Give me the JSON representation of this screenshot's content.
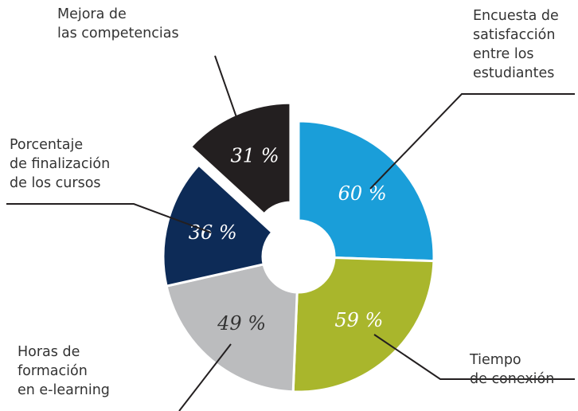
{
  "chart_data": {
    "type": "pie",
    "categories": [
      "Encuesta de\nsatisfacción\nentre los\nestudiantes",
      "Tiempo\nde conexión",
      "Horas de\nformación\nen e-learning",
      "Porcentaje\nde finalización\nde los cursos",
      "Mejora de\nlas competencias"
    ],
    "values": [
      60,
      59,
      49,
      36,
      31
    ],
    "value_labels": [
      "60 %",
      "59 %",
      "49 %",
      "36 %",
      "31 %"
    ],
    "colors": [
      "#1a9ed9",
      "#a9b62c",
      "#bbbcbe",
      "#0d2b57",
      "#231f20"
    ]
  }
}
